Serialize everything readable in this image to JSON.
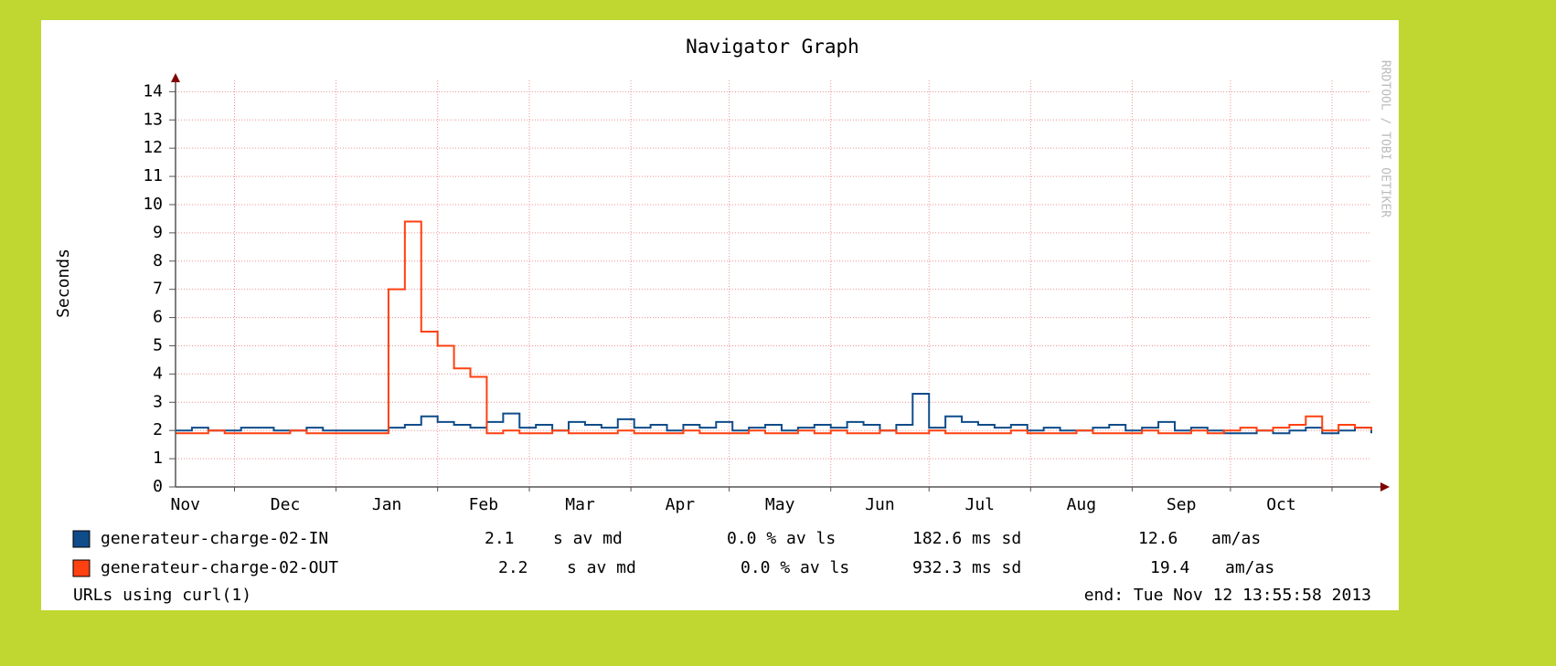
{
  "chart_data": {
    "type": "line",
    "title": "Navigator Graph",
    "y_label": "Seconds",
    "watermark": "RRDTOOL / TOBI OETIKER",
    "x": [
      0,
      5,
      10,
      15,
      20,
      25,
      30,
      35,
      40,
      45,
      50,
      55,
      60,
      65,
      70,
      75,
      80,
      85,
      90,
      95,
      100,
      105,
      110,
      115,
      120,
      125,
      130,
      135,
      140,
      145,
      150,
      155,
      160,
      165,
      170,
      175,
      180,
      185,
      190,
      195,
      200,
      205,
      210,
      215,
      220,
      225,
      230,
      235,
      240,
      245,
      250,
      255,
      260,
      265,
      270,
      275,
      280,
      285,
      290,
      295,
      300,
      305,
      310,
      315,
      320,
      325,
      330,
      335,
      340,
      345,
      350,
      355,
      360,
      365
    ],
    "xlim": [
      0,
      365
    ],
    "xticks": [
      {
        "value": -12,
        "label": "Nov"
      },
      {
        "value": 18,
        "label": "Dec"
      },
      {
        "value": 49,
        "label": "Jan"
      },
      {
        "value": 80,
        "label": "Feb"
      },
      {
        "value": 108,
        "label": "Mar"
      },
      {
        "value": 139,
        "label": "Apr"
      },
      {
        "value": 169,
        "label": "May"
      },
      {
        "value": 200,
        "label": "Jun"
      },
      {
        "value": 230,
        "label": "Jul"
      },
      {
        "value": 261,
        "label": "Aug"
      },
      {
        "value": 292,
        "label": "Sep"
      },
      {
        "value": 322,
        "label": "Oct"
      },
      {
        "value": 353,
        "label": null
      }
    ],
    "ylim": [
      0,
      14.4
    ],
    "yticks": [
      0,
      1,
      2,
      3,
      4,
      5,
      6,
      7,
      8,
      9,
      10,
      11,
      12,
      13,
      14
    ],
    "grid": true,
    "step": true,
    "series": [
      {
        "name": "generateur-charge-02-IN",
        "color": "#0f4c8a",
        "stats": [
          "2.1",
          "s av md",
          "0.0 % av ls",
          "182.6 ms sd",
          "12.6",
          "am/as"
        ],
        "values": [
          2.0,
          2.1,
          2.0,
          2.0,
          2.1,
          2.1,
          2.0,
          2.0,
          2.1,
          2.0,
          2.0,
          2.0,
          2.0,
          2.1,
          2.2,
          2.5,
          2.3,
          2.2,
          2.1,
          2.3,
          2.6,
          2.1,
          2.2,
          2.0,
          2.3,
          2.2,
          2.1,
          2.4,
          2.1,
          2.2,
          2.0,
          2.2,
          2.1,
          2.3,
          2.0,
          2.1,
          2.2,
          2.0,
          2.1,
          2.2,
          2.1,
          2.3,
          2.2,
          2.0,
          2.2,
          3.3,
          2.1,
          2.5,
          2.3,
          2.2,
          2.1,
          2.2,
          2.0,
          2.1,
          2.0,
          2.0,
          2.1,
          2.2,
          2.0,
          2.1,
          2.3,
          2.0,
          2.1,
          2.0,
          1.9,
          1.9,
          2.0,
          1.9,
          2.0,
          2.1,
          1.9,
          2.0,
          2.1,
          1.9
        ]
      },
      {
        "name": "generateur-charge-02-OUT",
        "color": "#ff4010",
        "stats": [
          "2.2",
          "s av md",
          "0.0 % av ls",
          "932.3 ms sd",
          "19.4",
          "am/as"
        ],
        "values": [
          1.9,
          1.9,
          2.0,
          1.9,
          1.9,
          1.9,
          1.9,
          2.0,
          1.9,
          1.9,
          1.9,
          1.9,
          1.9,
          7.0,
          9.4,
          5.5,
          5.0,
          4.2,
          3.9,
          1.9,
          2.0,
          1.9,
          1.9,
          2.0,
          1.9,
          1.9,
          1.9,
          2.0,
          1.9,
          1.9,
          1.9,
          2.0,
          1.9,
          1.9,
          1.9,
          2.0,
          1.9,
          1.9,
          2.0,
          1.9,
          2.0,
          1.9,
          1.9,
          2.0,
          1.9,
          1.9,
          2.0,
          1.9,
          1.9,
          1.9,
          1.9,
          2.0,
          1.9,
          1.9,
          1.9,
          2.0,
          1.9,
          1.9,
          1.9,
          2.0,
          1.9,
          1.9,
          2.0,
          1.9,
          2.0,
          2.1,
          2.0,
          2.1,
          2.2,
          2.5,
          2.0,
          2.2,
          2.1,
          2.0
        ]
      }
    ],
    "footer_left": "URLs using curl(1)",
    "footer_right": "end: Tue Nov 12 13:55:58 2013"
  }
}
